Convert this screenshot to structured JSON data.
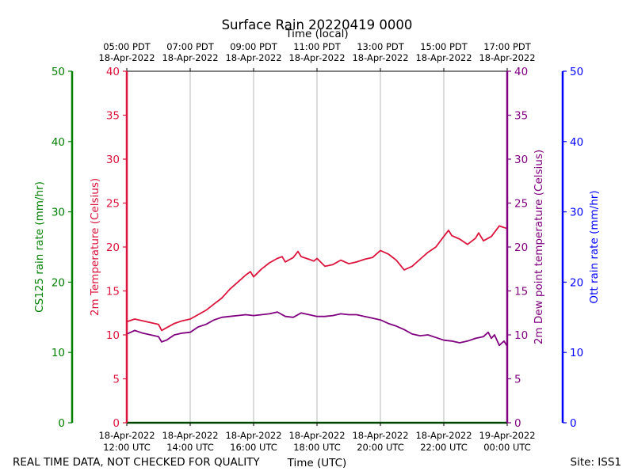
{
  "chart_data": {
    "type": "line",
    "title": "Surface Rain 20220419 0000",
    "top_axis_title": "Time (local)",
    "xlabel": "Time (UTC)",
    "footer_left": "REAL TIME DATA, NOT CHECKED FOR QUALITY",
    "footer_right": "Site: ISS1",
    "x_range_hours": [
      12,
      24
    ],
    "bottom_ticks": [
      {
        "hour": 12,
        "line1": "18-Apr-2022",
        "line2": "12:00 UTC"
      },
      {
        "hour": 14,
        "line1": "18-Apr-2022",
        "line2": "14:00 UTC"
      },
      {
        "hour": 16,
        "line1": "18-Apr-2022",
        "line2": "16:00 UTC"
      },
      {
        "hour": 18,
        "line1": "18-Apr-2022",
        "line2": "18:00 UTC"
      },
      {
        "hour": 20,
        "line1": "18-Apr-2022",
        "line2": "20:00 UTC"
      },
      {
        "hour": 22,
        "line1": "18-Apr-2022",
        "line2": "22:00 UTC"
      },
      {
        "hour": 24,
        "line1": "19-Apr-2022",
        "line2": "00:00 UTC"
      }
    ],
    "top_ticks": [
      {
        "hour": 12,
        "line1": "05:00 PDT",
        "line2": "18-Apr-2022"
      },
      {
        "hour": 14,
        "line1": "07:00 PDT",
        "line2": "18-Apr-2022"
      },
      {
        "hour": 16,
        "line1": "09:00 PDT",
        "line2": "18-Apr-2022"
      },
      {
        "hour": 18,
        "line1": "11:00 PDT",
        "line2": "18-Apr-2022"
      },
      {
        "hour": 20,
        "line1": "13:00 PDT",
        "line2": "18-Apr-2022"
      },
      {
        "hour": 22,
        "line1": "15:00 PDT",
        "line2": "18-Apr-2022"
      },
      {
        "hour": 24,
        "line1": "17:00 PDT",
        "line2": "18-Apr-2022"
      }
    ],
    "axes": {
      "cs125": {
        "label": "CS125 rain rate (mm/hr)",
        "ylim": [
          0,
          50
        ],
        "ticks": [
          0,
          10,
          20,
          30,
          40,
          50
        ],
        "color": "#008000"
      },
      "temp": {
        "label": "2m Temperature (Celsius)",
        "ylim": [
          0,
          40
        ],
        "ticks": [
          0,
          5,
          10,
          15,
          20,
          25,
          30,
          35,
          40
        ],
        "color": "#dc143c"
      },
      "dew": {
        "label": "2m Dew point temperature (Celsius)",
        "ylim": [
          0,
          40
        ],
        "ticks": [
          0,
          5,
          10,
          15,
          20,
          25,
          30,
          35,
          40
        ],
        "color": "#800080"
      },
      "ott": {
        "label": "Ott rain rate (mm/hr)",
        "ylim": [
          0,
          50
        ],
        "ticks": [
          0,
          10,
          20,
          30,
          40,
          50
        ],
        "color": "#0000ff"
      }
    },
    "series": [
      {
        "name": "2m Temperature",
        "color": "#dc143c",
        "x": [
          12.0,
          12.25,
          12.5,
          12.75,
          13.0,
          13.1,
          13.25,
          13.5,
          13.75,
          14.0,
          14.25,
          14.5,
          14.75,
          15.0,
          15.25,
          15.5,
          15.75,
          15.9,
          16.0,
          16.25,
          16.5,
          16.75,
          16.9,
          17.0,
          17.25,
          17.4,
          17.5,
          17.75,
          17.9,
          18.0,
          18.25,
          18.5,
          18.75,
          19.0,
          19.25,
          19.5,
          19.75,
          20.0,
          20.25,
          20.5,
          20.75,
          21.0,
          21.25,
          21.5,
          21.75,
          22.0,
          22.15,
          22.25,
          22.5,
          22.75,
          23.0,
          23.1,
          23.25,
          23.5,
          23.75,
          24.0
        ],
        "values": [
          11.5,
          11.8,
          11.6,
          11.4,
          11.2,
          10.5,
          10.8,
          11.3,
          11.6,
          11.8,
          12.3,
          12.8,
          13.5,
          14.2,
          15.2,
          16.0,
          16.8,
          17.2,
          16.6,
          17.5,
          18.2,
          18.7,
          18.9,
          18.3,
          18.8,
          19.5,
          18.9,
          18.6,
          18.4,
          18.7,
          17.8,
          18.0,
          18.5,
          18.1,
          18.3,
          18.6,
          18.8,
          19.6,
          19.2,
          18.5,
          17.4,
          17.8,
          18.6,
          19.4,
          20.0,
          21.2,
          21.9,
          21.3,
          20.9,
          20.3,
          21.0,
          21.6,
          20.7,
          21.2,
          22.4,
          22.1
        ]
      },
      {
        "name": "2m Dew point temperature",
        "color": "#800080",
        "x": [
          12.0,
          12.25,
          12.5,
          12.75,
          13.0,
          13.1,
          13.25,
          13.5,
          13.75,
          14.0,
          14.25,
          14.5,
          14.75,
          15.0,
          15.25,
          15.5,
          15.75,
          16.0,
          16.25,
          16.5,
          16.75,
          17.0,
          17.25,
          17.5,
          17.75,
          18.0,
          18.25,
          18.5,
          18.75,
          19.0,
          19.25,
          19.5,
          19.75,
          20.0,
          20.25,
          20.5,
          20.75,
          21.0,
          21.25,
          21.5,
          21.75,
          22.0,
          22.25,
          22.5,
          22.75,
          23.0,
          23.25,
          23.4,
          23.5,
          23.6,
          23.75,
          23.9,
          24.0
        ],
        "values": [
          10.1,
          10.5,
          10.2,
          10.0,
          9.8,
          9.2,
          9.4,
          10.0,
          10.2,
          10.3,
          10.9,
          11.2,
          11.7,
          12.0,
          12.1,
          12.2,
          12.3,
          12.2,
          12.3,
          12.4,
          12.6,
          12.1,
          12.0,
          12.5,
          12.3,
          12.1,
          12.1,
          12.2,
          12.4,
          12.3,
          12.3,
          12.1,
          11.9,
          11.7,
          11.3,
          11.0,
          10.6,
          10.1,
          9.9,
          10.0,
          9.7,
          9.4,
          9.3,
          9.1,
          9.3,
          9.6,
          9.8,
          10.3,
          9.6,
          10.0,
          8.8,
          9.3,
          8.7
        ]
      },
      {
        "name": "CS125 rain rate",
        "color": "#008000",
        "x": [
          12.0,
          24.0
        ],
        "values": [
          0,
          0
        ]
      }
    ]
  }
}
